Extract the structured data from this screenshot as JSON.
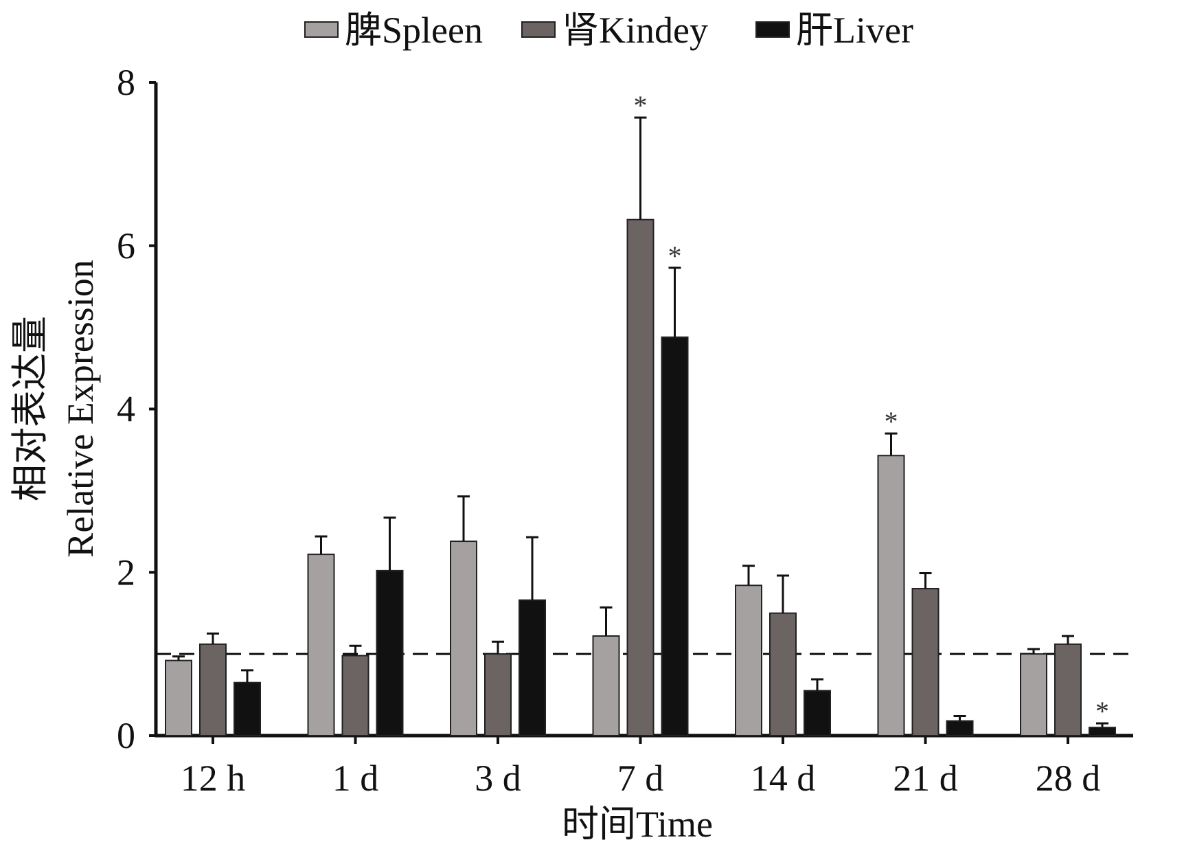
{
  "chart_data": {
    "type": "bar",
    "title": "",
    "xlabel": "时间Time",
    "ylabel_cn": "相对表达量",
    "ylabel": "Relative Expression",
    "ylim": [
      0,
      8
    ],
    "yticks": [
      "0",
      "2",
      "4",
      "6",
      "8"
    ],
    "categories": [
      "12 h",
      "1 d",
      "3 d",
      "7 d",
      "14 d",
      "21 d",
      "28 d"
    ],
    "reference_line": 1,
    "legend_position": "top",
    "series": [
      {
        "name": "脾Spleen",
        "color": "#a6a1a1",
        "values": [
          0.92,
          2.22,
          2.38,
          1.22,
          1.84,
          3.43,
          1.0
        ],
        "errors": [
          0.05,
          0.22,
          0.55,
          0.35,
          0.24,
          0.27,
          0.06
        ],
        "significant": [
          false,
          false,
          false,
          false,
          false,
          true,
          false
        ]
      },
      {
        "name": "肾Kindey",
        "color": "#6b6463",
        "values": [
          1.12,
          0.98,
          1.0,
          6.32,
          1.5,
          1.8,
          1.12
        ],
        "errors": [
          0.13,
          0.12,
          0.15,
          1.25,
          0.46,
          0.19,
          0.1
        ],
        "significant": [
          false,
          false,
          false,
          true,
          false,
          false,
          false
        ]
      },
      {
        "name": "肝Liver",
        "color": "#111111",
        "values": [
          0.65,
          2.02,
          1.66,
          4.88,
          0.55,
          0.18,
          0.1
        ],
        "errors": [
          0.15,
          0.65,
          0.77,
          0.85,
          0.14,
          0.06,
          0.05
        ],
        "significant": [
          false,
          false,
          false,
          true,
          false,
          false,
          true
        ]
      }
    ],
    "significance_marker": "*"
  }
}
